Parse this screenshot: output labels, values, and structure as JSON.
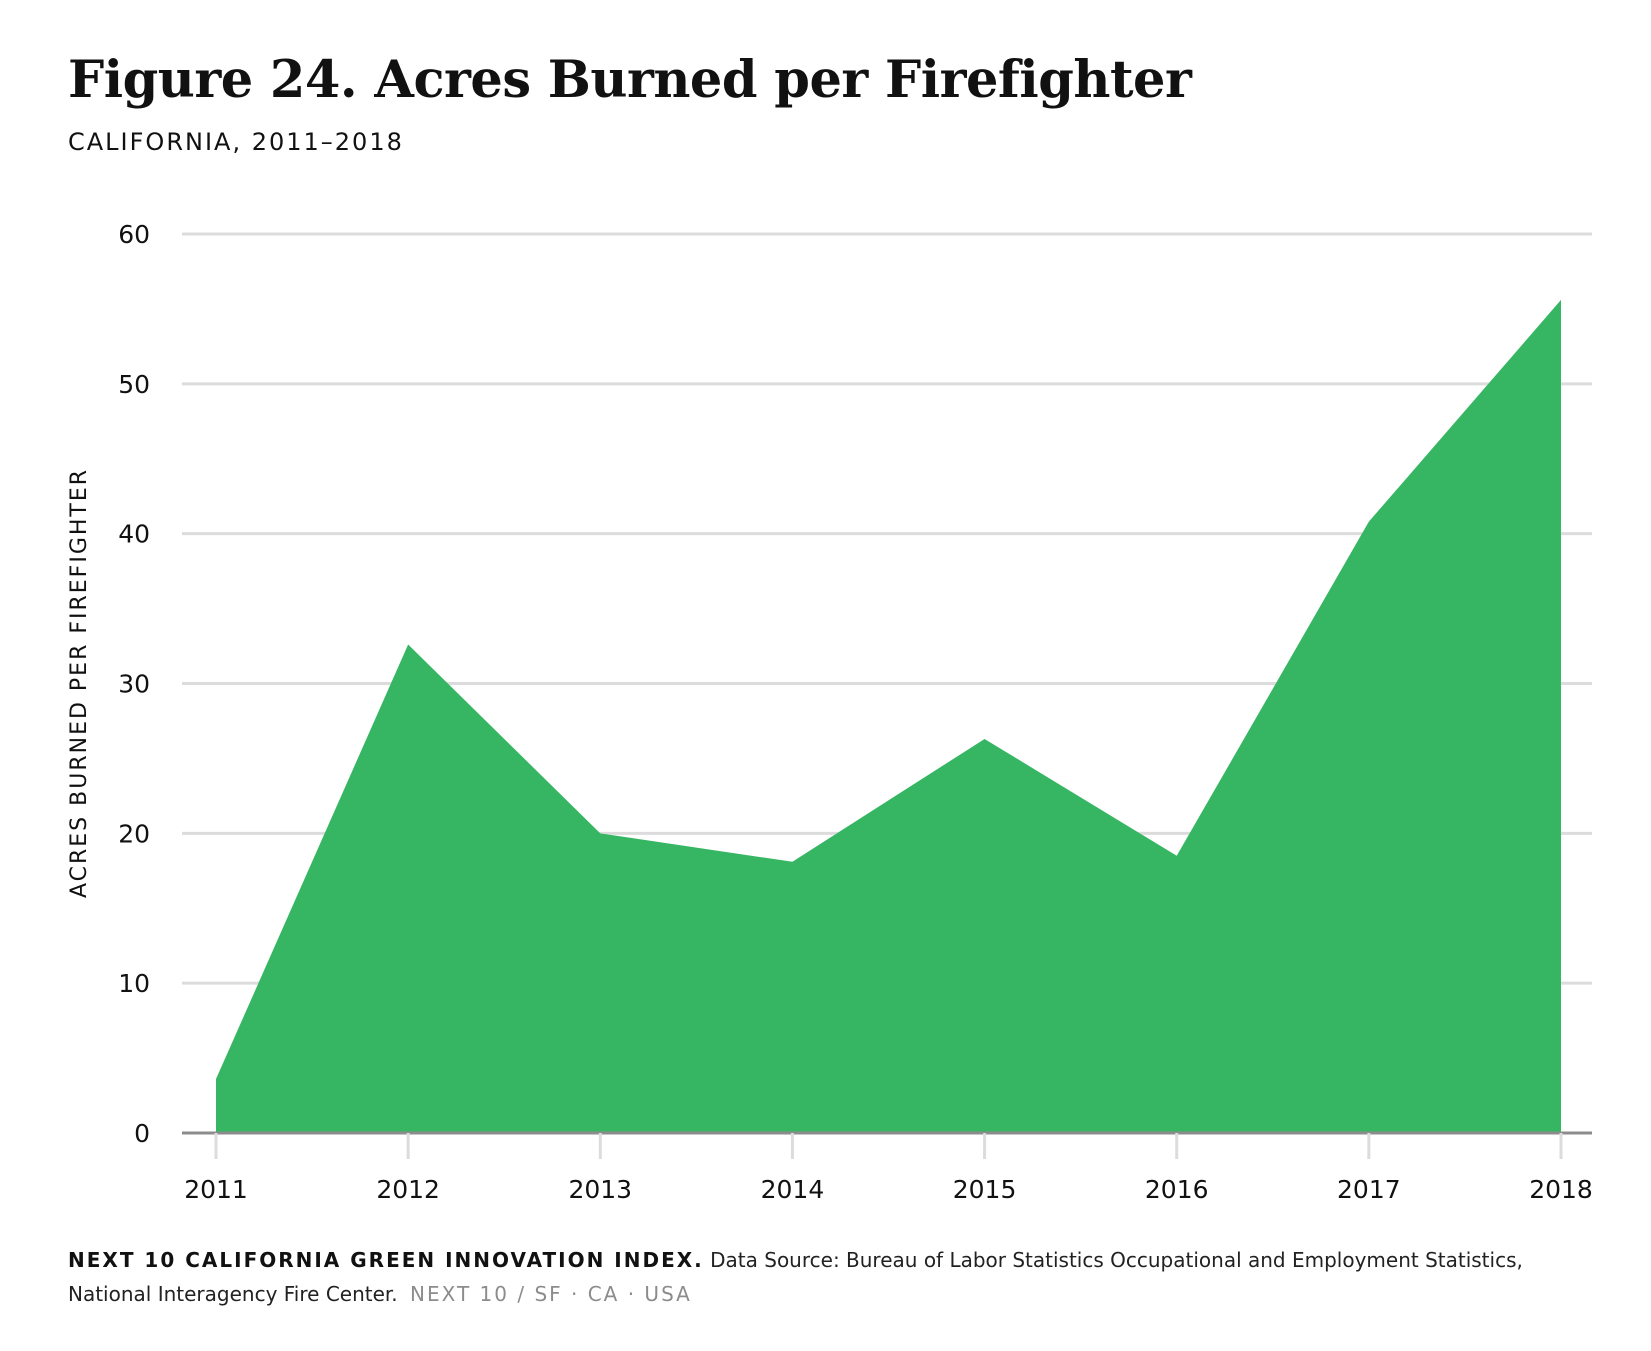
{
  "header": {
    "title": "Figure 24. Acres Burned per Firefighter",
    "subtitle": "CALIFORNIA, 2011–2018"
  },
  "footer": {
    "organization": "NEXT 10 CALIFORNIA GREEN INNOVATION INDEX.",
    "source": "Data Source: Bureau of Labor Statistics Occupational and Employment Statistics, National Interagency Fire Center.",
    "signature": "NEXT 10  /  SF · CA · USA"
  },
  "colors": {
    "area_fill": "#36b662",
    "gridline": "#dcdcdc",
    "baseline": "#8c8c8c",
    "text": "#111111"
  },
  "chart_data": {
    "type": "area",
    "title": "Figure 24. Acres Burned per Firefighter",
    "subtitle": "CALIFORNIA, 2011–2018",
    "xlabel": "",
    "ylabel": "ACRES BURNED PER FIREFIGHTER",
    "categories": [
      "2011",
      "2012",
      "2013",
      "2014",
      "2015",
      "2016",
      "2017",
      "2018"
    ],
    "series": [
      {
        "values": [
          3.6,
          32.6,
          20.0,
          18.1,
          26.3,
          18.5,
          40.8,
          55.6
        ]
      }
    ],
    "ylim": [
      0,
      60
    ],
    "yticks": [
      0,
      10,
      20,
      30,
      40,
      50,
      60
    ],
    "grid": true,
    "legend": "none"
  }
}
